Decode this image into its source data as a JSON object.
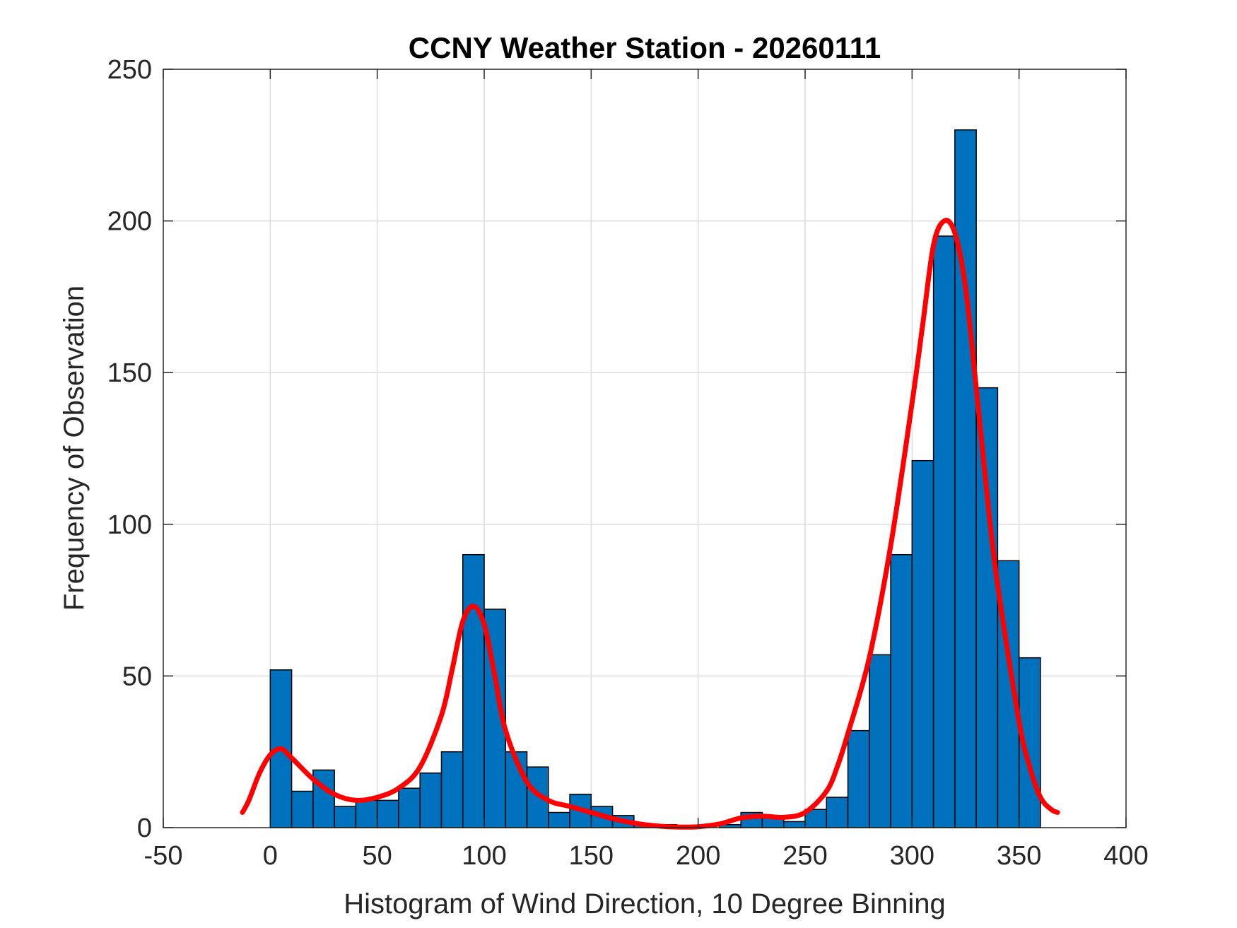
{
  "chart_data": {
    "type": "bar",
    "title": "CCNY Weather Station - 20260111",
    "xlabel": "Histogram of Wind Direction, 10 Degree Binning",
    "ylabel": "Frequency of Observation",
    "xlim": [
      -50,
      400
    ],
    "ylim": [
      0,
      250
    ],
    "xticks": [
      -50,
      0,
      50,
      100,
      150,
      200,
      250,
      300,
      350,
      400
    ],
    "yticks": [
      0,
      50,
      100,
      150,
      200,
      250
    ],
    "grid": true,
    "bin_width": 10,
    "bin_edges": [
      0,
      10,
      20,
      30,
      40,
      50,
      60,
      70,
      80,
      90,
      100,
      110,
      120,
      130,
      140,
      150,
      160,
      170,
      180,
      190,
      200,
      210,
      220,
      230,
      240,
      250,
      260,
      270,
      280,
      290,
      300,
      310,
      320,
      330,
      340,
      350,
      360
    ],
    "values": [
      52,
      12,
      19,
      7,
      9,
      9,
      13,
      18,
      25,
      90,
      72,
      25,
      20,
      5,
      11,
      7,
      4,
      1,
      1,
      0,
      0,
      1,
      5,
      4,
      2,
      6,
      10,
      32,
      57,
      90,
      121,
      195,
      230,
      145,
      88,
      56
    ],
    "bar_color": "#0072BD",
    "curve_color": "#FF0000",
    "curve": {
      "x": [
        -13,
        -10,
        -5,
        0,
        5,
        10,
        20,
        30,
        40,
        50,
        60,
        70,
        80,
        85,
        90,
        95,
        100,
        105,
        110,
        120,
        130,
        140,
        150,
        160,
        170,
        180,
        190,
        200,
        210,
        220,
        230,
        240,
        250,
        260,
        265,
        270,
        280,
        290,
        300,
        305,
        310,
        315,
        320,
        325,
        330,
        335,
        340,
        350,
        355,
        360,
        365,
        368
      ],
      "y": [
        5,
        9,
        18,
        24,
        26,
        23,
        16,
        11,
        9,
        10,
        13,
        20,
        37,
        52,
        68,
        73,
        67,
        50,
        32,
        15,
        9,
        7,
        5,
        3,
        1.5,
        0.6,
        0.2,
        0.3,
        1.2,
        3.2,
        3.8,
        3.4,
        5,
        12,
        20,
        31,
        56,
        93,
        140,
        166,
        192,
        200,
        196,
        178,
        145,
        110,
        80,
        35,
        20,
        10,
        6,
        5
      ]
    }
  }
}
